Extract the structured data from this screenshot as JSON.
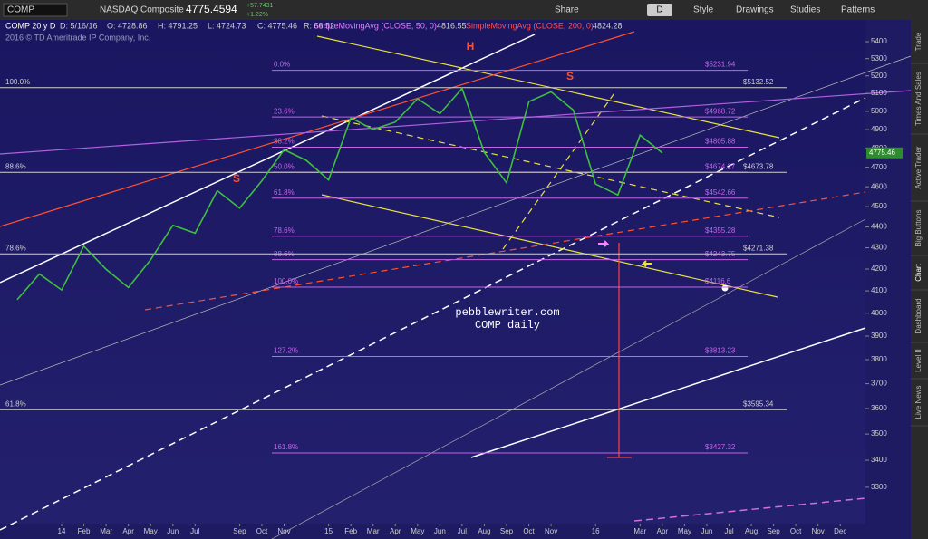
{
  "toolbar": {
    "symbol": "COMP",
    "name": "NASDAQ Composite",
    "price": "4775.4594",
    "change": "+57.7431",
    "change_pct": "+1.22%",
    "buttons": [
      "Share",
      "D",
      "Style",
      "Drawings",
      "Studies",
      "Patterns"
    ]
  },
  "header": {
    "period": "COMP 20 y D",
    "date": "D: 5/16/16",
    "open": "O: 4728.86",
    "high": "H: 4791.25",
    "low": "L: 4724.73",
    "close": "C: 4775.46",
    "range": "R: 66.52",
    "sma50": "SimpleMovingAvg (CLOSE, 50, 0)",
    "sma50_value": "4816.55",
    "sma200": "SimpleMovingAvg (CLOSE, 200, 0)",
    "sma200_value": "4824.28",
    "copyright": "2016 © TD Ameritrade IP Company, Inc."
  },
  "side_tabs": [
    "Trade",
    "Times And Sales",
    "Active Trader",
    "Big Buttons",
    "Chart",
    "Dashboard",
    "Level II",
    "Live News"
  ],
  "chart_data": {
    "type": "line",
    "annotations": [
      "pebblewriter.com",
      "COMP daily"
    ],
    "pattern_labels": [
      "H",
      "S",
      "S"
    ],
    "categories": [
      null,
      null,
      "14",
      "Feb",
      "Mar",
      "Apr",
      "May",
      "Jun",
      "Jul",
      null,
      "Sep",
      "Oct",
      "Nov",
      null,
      "15",
      "Feb",
      "Mar",
      "Apr",
      "May",
      "Jun",
      "Jul",
      "Aug",
      "Sep",
      "Oct",
      "Nov",
      null,
      "16",
      null,
      "Mar",
      "Apr",
      "May",
      "Jun",
      "Jul",
      "Aug",
      "Sep",
      "Oct",
      "Nov",
      "Dec"
    ],
    "values": [
      4060,
      4177,
      4104,
      4308,
      4199,
      4115,
      4243,
      4408,
      4370,
      4580,
      4493,
      4631,
      4792,
      4736,
      4635,
      4964,
      4901,
      4941,
      5070,
      4987,
      5128,
      4777,
      4620,
      5054,
      5109,
      5007,
      4614,
      4558,
      4870,
      4775,
      null,
      null,
      null,
      null,
      null,
      null,
      null,
      null
    ],
    "color": "#3fbf3f",
    "log_scale": true,
    "ylim": [
      3170,
      5460
    ],
    "yticks": [
      3300,
      3400,
      3500,
      3600,
      3700,
      3800,
      3900,
      4000,
      4100,
      4200,
      4300,
      4400,
      4500,
      4600,
      4700,
      4800,
      4900,
      5000,
      5100,
      5200,
      5300,
      5400
    ],
    "last_price": 4775.46,
    "fib_levels": {
      "color": "#c266e8",
      "labels": [
        "0.0%",
        "23.6%",
        "38.2%",
        "50.0%",
        "61.8%",
        "78.6%",
        "88.6%",
        "100.0%",
        "127.2%",
        "161.8%"
      ],
      "values": [
        5231.94,
        4968.72,
        4805.88,
        4674.27,
        4542.66,
        4355.28,
        4243.75,
        4116.6,
        3813.23,
        3427.32
      ],
      "value_labels": [
        "$5231.94",
        "$4968.72",
        "$4805.88",
        "$4674.27",
        "$4542.66",
        "$4355.28",
        "$4243.75",
        "$4116.6",
        "$3813.23",
        "$3427.32"
      ]
    },
    "retracement_levels": {
      "color": "#d0d0d0",
      "labels": [
        "100.0%",
        "88.6%",
        "78.6%",
        "61.8%"
      ],
      "values": [
        5132.52,
        4673.78,
        4271.38,
        3595.34
      ],
      "value_labels": [
        "$5132.52",
        "$4673.78",
        "$4271.38",
        "$3595.34"
      ]
    }
  }
}
